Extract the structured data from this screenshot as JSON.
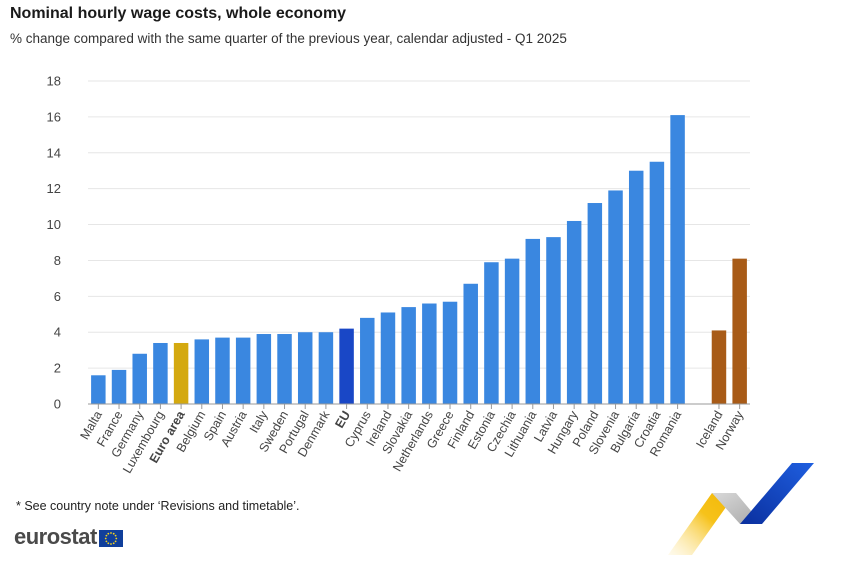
{
  "header": {
    "title": "Nominal hourly wage costs, whole economy",
    "subtitle": "% change compared with the same quarter of the previous year, calendar adjusted - Q1 2025"
  },
  "footer": {
    "note": "* See country note under ‘Revisions and timetable’.",
    "logo_text": "eurostat"
  },
  "colors": {
    "country": "#3a87e0",
    "euro_area": "#d4a90f",
    "eu": "#1947c6",
    "efta": "#a85b17",
    "grid": "#e6e6e6",
    "axis": "#999999"
  },
  "chart_data": {
    "type": "bar",
    "title": "Nominal hourly wage costs, whole economy",
    "subtitle": "% change compared with the same quarter of the previous year, calendar adjusted - Q1 2025",
    "xlabel": "",
    "ylabel": "",
    "ylim": [
      0,
      18
    ],
    "yticks": [
      0,
      2,
      4,
      6,
      8,
      10,
      12,
      14,
      16,
      18
    ],
    "grid": true,
    "legend": "none",
    "categories": [
      "Malta",
      "France",
      "Germany",
      "Luxembourg",
      "Euro area",
      "Belgium",
      "Spain",
      "Austria",
      "Italy",
      "Sweden",
      "Portugal",
      "Denmark",
      "EU",
      "Cyprus",
      "Ireland",
      "Slovakia",
      "Netherlands",
      "Greece",
      "Finland",
      "Estonia",
      "Czechia",
      "Lithuania",
      "Latvia",
      "Hungary",
      "Poland",
      "Slovenia",
      "Bulgaria",
      "Croatia",
      "Romania",
      "Iceland",
      "Norway"
    ],
    "values": [
      1.6,
      1.9,
      2.8,
      3.4,
      3.4,
      3.6,
      3.7,
      3.7,
      3.9,
      3.9,
      4.0,
      4.0,
      4.2,
      4.8,
      5.1,
      5.4,
      5.6,
      5.7,
      6.7,
      7.9,
      8.1,
      9.2,
      9.3,
      10.2,
      11.2,
      11.9,
      13.0,
      13.5,
      16.1,
      4.1,
      8.1
    ],
    "groups": [
      "country",
      "country",
      "country",
      "country",
      "euro_area",
      "country",
      "country",
      "country",
      "country",
      "country",
      "country",
      "country",
      "eu",
      "country",
      "country",
      "country",
      "country",
      "country",
      "country",
      "country",
      "country",
      "country",
      "country",
      "country",
      "country",
      "country",
      "country",
      "country",
      "country",
      "efta",
      "efta"
    ],
    "bold_labels": [
      "Euro area",
      "EU"
    ]
  }
}
